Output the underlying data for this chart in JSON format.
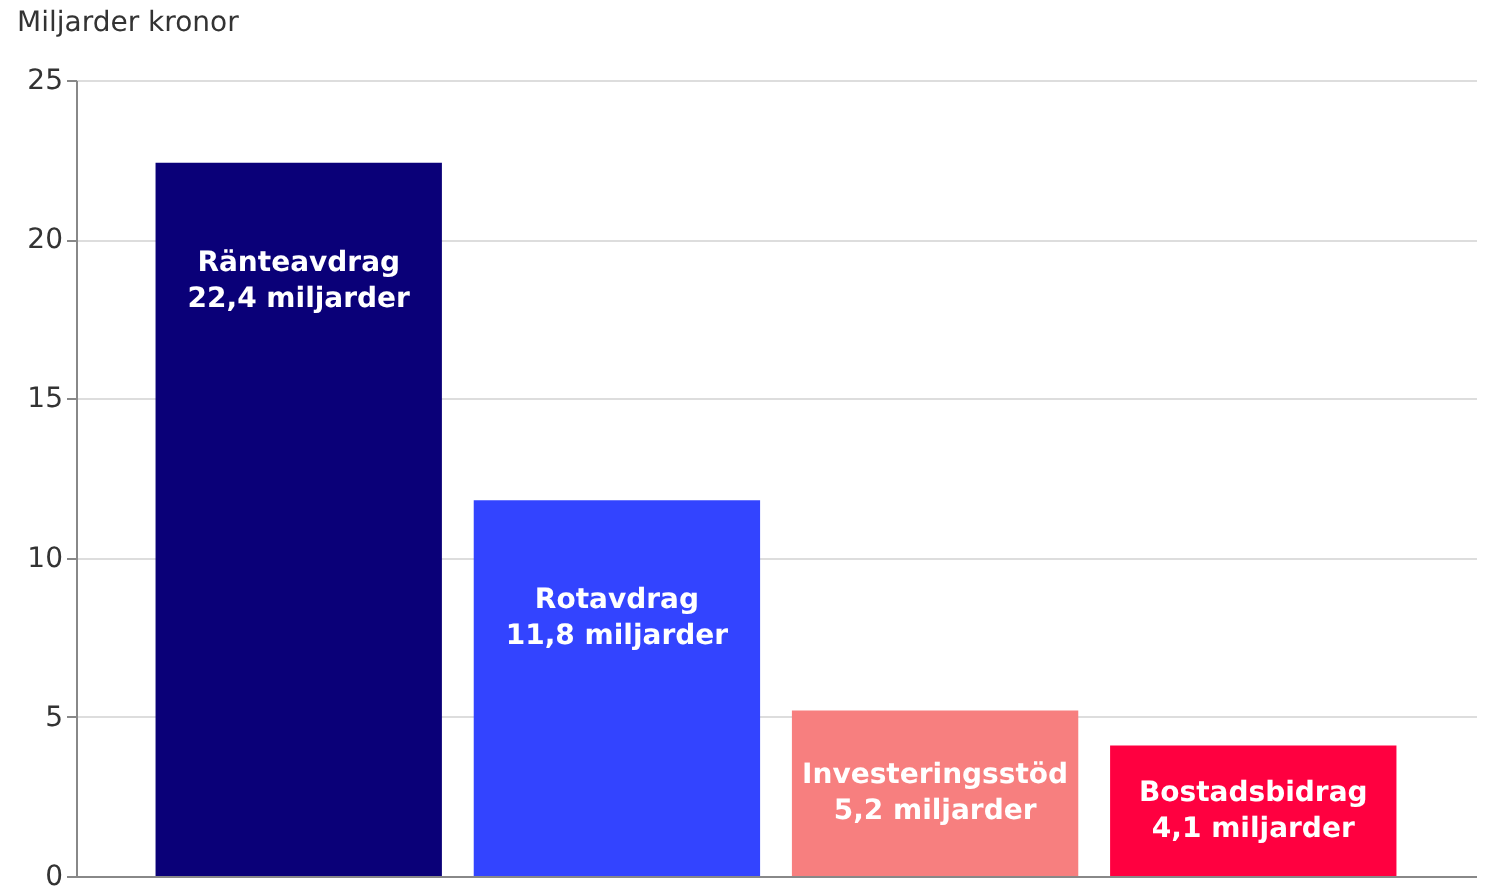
{
  "chart_data": {
    "type": "bar",
    "ylabel": "Miljarder kronor",
    "categories": [
      "Ränteavdrag",
      "Rotavdrag",
      "Investeringsstöd",
      "Bostadsbidrag"
    ],
    "values": [
      22.4,
      11.8,
      5.2,
      4.1
    ],
    "colors": [
      "#0a0078",
      "#3344ff",
      "#f77f7f",
      "#ff0040"
    ],
    "value_labels": [
      "22,4 miljarder",
      "11,8 miljarder",
      "5,2 miljarder",
      "4,1 miljarder"
    ],
    "ylim": [
      0,
      25
    ],
    "yticks": [
      0,
      5,
      10,
      15,
      20,
      25
    ],
    "grid": "y",
    "tick_labels": "y"
  }
}
